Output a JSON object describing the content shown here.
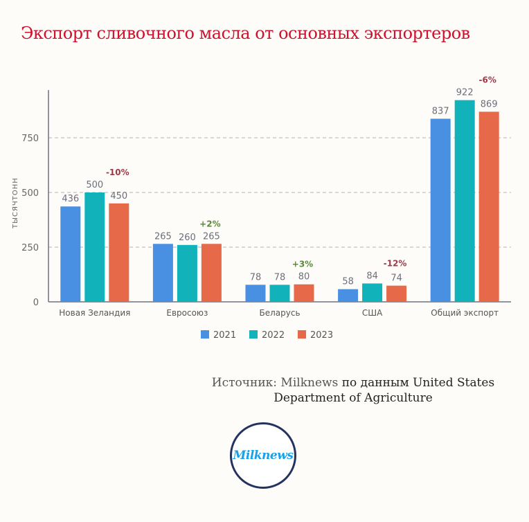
{
  "title": "Экспорт сливочного масла от основных экспортеров",
  "source": {
    "prefix": "Источник: Milknews",
    "rest_line1": "по данным United States",
    "line2": "Department of Agriculture"
  },
  "logo_text": "Milknews",
  "colors": {
    "2021": "#4a90e2",
    "2022": "#12b2bb",
    "2023": "#e6694a",
    "negative": "#9b3a48",
    "positive": "#5a8a3a"
  },
  "chart_data": {
    "type": "bar",
    "title": "Экспорт сливочного масла от основных экспортеров",
    "ylabel": "тысяч тонн",
    "xlabel": "",
    "ylim": [
      0,
      968
    ],
    "yticks": [
      0,
      250,
      500,
      750
    ],
    "grid": true,
    "legend_position": "bottom",
    "categories": [
      "Новая Зеландия",
      "Евросоюз",
      "Беларусь",
      "США",
      "Общий экспорт"
    ],
    "series": [
      {
        "name": "2021",
        "values": [
          436,
          265,
          78,
          58,
          837
        ]
      },
      {
        "name": "2022",
        "values": [
          500,
          260,
          78,
          84,
          922
        ]
      },
      {
        "name": "2023",
        "values": [
          450,
          265,
          80,
          74,
          869
        ]
      }
    ],
    "annotations": [
      "-10%",
      "+2%",
      "+3%",
      "-12%",
      "-6%"
    ]
  }
}
